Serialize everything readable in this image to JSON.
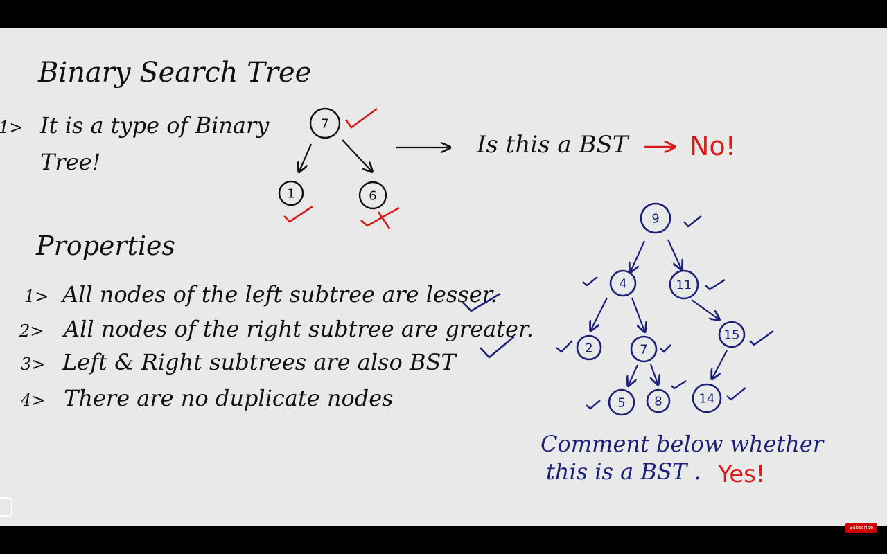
{
  "title": "Binary Search Tree",
  "point1_marker": "1>",
  "definition_line1": "It is a type of Binary",
  "definition_line2": "Tree!",
  "question": "Is this a BST",
  "answer_no": "No!",
  "properties_heading": "Properties",
  "properties": [
    {
      "marker": "1>",
      "text": "All nodes of the left subtree are lesser."
    },
    {
      "marker": "2>",
      "text": "All nodes of the right subtree are greater."
    },
    {
      "marker": "3>",
      "text": "Left & Right subtrees are also BST"
    },
    {
      "marker": "4>",
      "text": "There are no duplicate nodes"
    }
  ],
  "small_tree": {
    "nodes": [
      {
        "id": "n7",
        "value": "7"
      },
      {
        "id": "n1",
        "value": "1"
      },
      {
        "id": "n6",
        "value": "6"
      }
    ]
  },
  "big_tree": {
    "nodes": [
      {
        "id": "b9",
        "value": "9"
      },
      {
        "id": "b4",
        "value": "4"
      },
      {
        "id": "b11",
        "value": "11"
      },
      {
        "id": "b2",
        "value": "2"
      },
      {
        "id": "b7",
        "value": "7"
      },
      {
        "id": "b15",
        "value": "15"
      },
      {
        "id": "b5",
        "value": "5"
      },
      {
        "id": "b8",
        "value": "8"
      },
      {
        "id": "b14",
        "value": "14"
      }
    ]
  },
  "comment_line1": "Comment below whether",
  "comment_line2": "this is a BST .",
  "answer_yes": "Yes!",
  "subscribe_label": "Subscribe",
  "colors": {
    "ink": "#111111",
    "blue_ink": "#1a1f7a",
    "red_ink": "#dd1a1a",
    "board": "#e9e9e9"
  }
}
